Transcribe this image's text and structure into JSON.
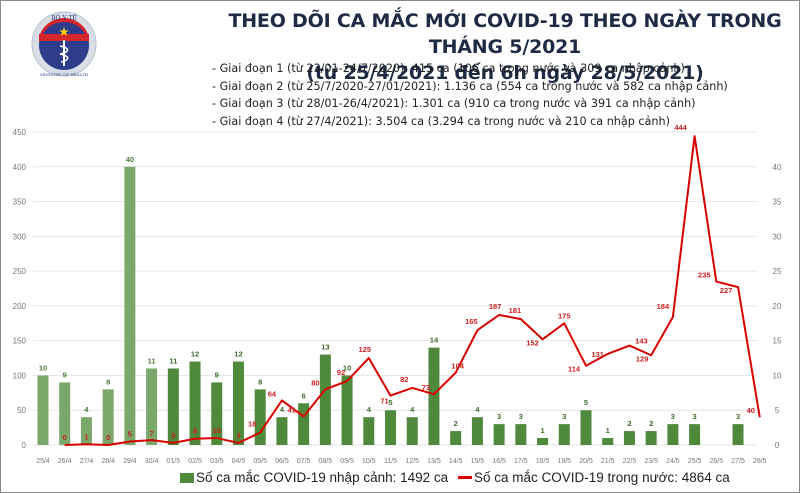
{
  "header": {
    "logo": {
      "top_text": "BỘ Y TẾ",
      "bottom_text": "MINISTRY OF HEALTH"
    },
    "title_line1": "THEO DÕI CA MẮC MỚI COVID-19 THEO NGÀY TRONG THÁNG 5/2021",
    "title_line2": "(từ 25/4/2021 đến 6h ngày 28/5/2021)",
    "phases": [
      "- Giai đoạn 1 (từ 23/01-24/7/2020): 415 ca (106 ca trong nước và 309 ca nhập cảnh)",
      "- Giai đoạn 2 (từ 25/7/2020-27/01/2021): 1.136 ca (554 ca trong nước và 582 ca nhập cảnh)",
      "- Giai đoạn 3 (từ 28/01-26/4/2021): 1.301 ca (910 ca trong nước và 391 ca nhập cảnh)",
      "- Giai đoạn 4 (từ 27/4/2021): 3.504 ca (3.294 ca trong nước và 210 ca nhập cảnh)"
    ]
  },
  "legend": {
    "bar_label": "Số ca mắc COVID-19 nhập cảnh: 1492 ca",
    "line_label": "Số ca mắc COVID-19 trong nước: 4864 ca"
  },
  "colors": {
    "bar_early": "#7aa86a",
    "bar": "#4f8a3c",
    "bar_label": "#3f6b2e",
    "line": "#d90000",
    "grid": "#e6e6e6",
    "axis_text": "#777777"
  },
  "chart_data": {
    "type": "bar+line",
    "title": "THEO DÕI CA MẮC MỚI COVID-19 THEO NGÀY TRONG THÁNG 5/2021",
    "subtitle": "(từ 25/4/2021 đến 6h ngày 28/5/2021)",
    "categories": [
      "25/4",
      "26/4",
      "27/4",
      "28/4",
      "29/4",
      "30/4",
      "01/5",
      "02/5",
      "03/5",
      "04/5",
      "05/5",
      "06/5",
      "07/5",
      "08/5",
      "09/5",
      "10/5",
      "11/5",
      "12/5",
      "13/5",
      "14/5",
      "15/5",
      "16/5",
      "17/5",
      "18/5",
      "19/5",
      "20/5",
      "21/5",
      "22/5",
      "23/5",
      "24/5",
      "25/5",
      "26/5",
      "27/5",
      "28/5"
    ],
    "series": [
      {
        "name": "Số ca mắc COVID-19 nhập cảnh: 1492 ca",
        "type": "bar",
        "axis": "right",
        "values": [
          10,
          9,
          4,
          8,
          40,
          11,
          11,
          12,
          9,
          12,
          8,
          4,
          6,
          13,
          10,
          4,
          5,
          4,
          14,
          2,
          4,
          3,
          3,
          1,
          3,
          5,
          1,
          2,
          2,
          3,
          3,
          0,
          3,
          0
        ]
      },
      {
        "name": "Số ca mắc COVID-19 trong nước: 4864 ca",
        "type": "line",
        "axis": "left",
        "values": [
          null,
          0,
          1,
          0,
          5,
          7,
          3,
          9,
          10,
          3,
          18,
          64,
          41,
          80,
          92,
          125,
          71,
          82,
          73,
          104,
          165,
          187,
          181,
          152,
          175,
          114,
          131,
          143,
          129,
          184,
          444,
          235,
          227,
          40
        ]
      }
    ],
    "left_axis": {
      "ylim": [
        0,
        450
      ],
      "ticks": [
        0,
        50,
        100,
        150,
        200,
        250,
        300,
        350,
        400,
        450
      ]
    },
    "right_axis": {
      "ylim": [
        0,
        45
      ],
      "ticks": [
        0,
        5,
        10,
        15,
        20,
        25,
        30,
        35,
        40
      ]
    },
    "grid": true,
    "legend_position": "bottom"
  }
}
